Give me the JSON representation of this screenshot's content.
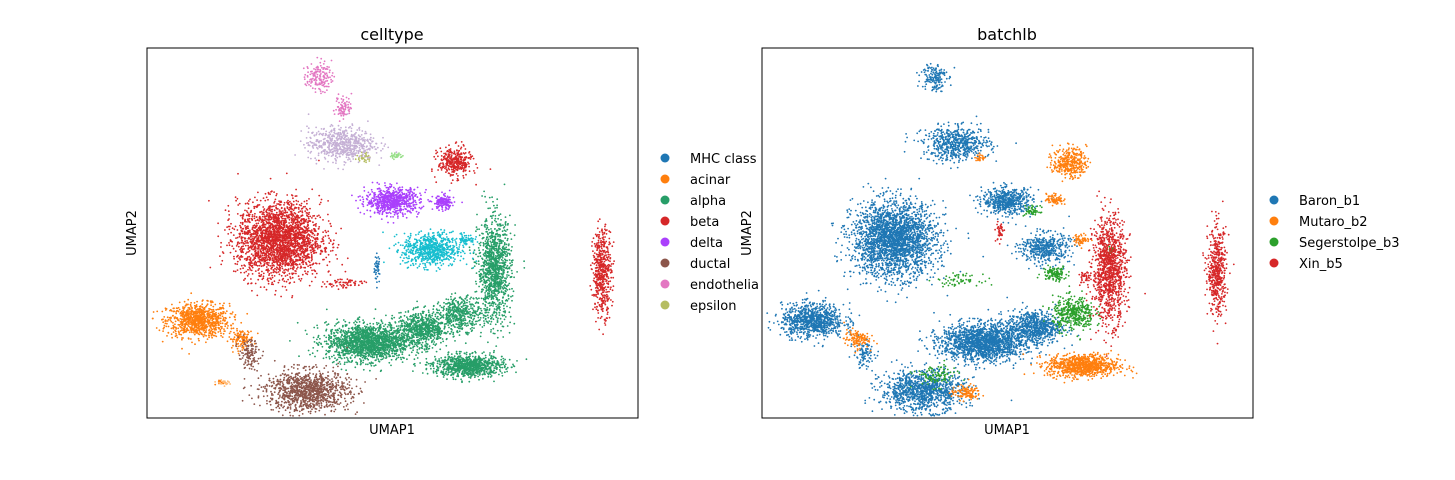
{
  "chart_data": [
    {
      "type": "scatter",
      "title": "celltype",
      "xlabel": "UMAP1",
      "ylabel": "UMAP2",
      "xlim": [
        -8,
        18
      ],
      "ylim": [
        -8,
        14
      ],
      "legend_position": "right",
      "series": [
        {
          "name": "MHC class",
          "color": "#1f77b4",
          "clusters": [
            [
              4.2,
              0.9,
              0.15,
              0.8,
              40
            ]
          ]
        },
        {
          "name": "acinar",
          "color": "#ff7f0e",
          "clusters": [
            [
              -5.3,
              -2.2,
              1.5,
              0.9,
              900
            ],
            [
              -3.0,
              -3.3,
              0.6,
              0.5,
              120
            ],
            [
              -4.0,
              -5.9,
              0.25,
              0.12,
              15
            ]
          ]
        },
        {
          "name": "alpha",
          "color": "#279e68",
          "clusters": [
            [
              3.7,
              -3.5,
              2.0,
              1.0,
              1700
            ],
            [
              6.6,
              -2.7,
              1.3,
              0.9,
              700
            ],
            [
              8.6,
              -1.8,
              1.0,
              0.9,
              400
            ],
            [
              10.4,
              0.8,
              0.8,
              2.8,
              1100
            ],
            [
              9.0,
              -4.9,
              1.7,
              0.6,
              900
            ]
          ]
        },
        {
          "name": "beta",
          "color": "#d62728",
          "clusters": [
            [
              -1.0,
              2.6,
              2.0,
              2.0,
              2500
            ],
            [
              8.3,
              7.2,
              0.8,
              0.8,
              350
            ],
            [
              16.1,
              0.7,
              0.45,
              2.3,
              500
            ],
            [
              2.4,
              0.0,
              1.0,
              0.3,
              60
            ]
          ]
        },
        {
          "name": "delta",
          "color": "#aa40fc",
          "clusters": [
            [
              5.0,
              4.9,
              1.3,
              0.7,
              700
            ],
            [
              7.7,
              4.8,
              0.5,
              0.4,
              150
            ]
          ]
        },
        {
          "name": "ductal",
          "color": "#8c564b",
          "clusters": [
            [
              0.5,
              -6.4,
              2.0,
              1.1,
              1100
            ],
            [
              -2.6,
              -4.2,
              0.5,
              0.8,
              120
            ]
          ]
        },
        {
          "name": "endothelia",
          "color": "#e377c2",
          "clusters": [
            [
              1.1,
              12.3,
              0.6,
              0.8,
              150
            ],
            [
              2.4,
              10.5,
              0.4,
              0.6,
              80
            ]
          ]
        },
        {
          "name": "epsilon",
          "color": "#b5bd61",
          "clusters": [
            [
              3.5,
              7.5,
              0.3,
              0.3,
              30
            ]
          ]
        },
        {
          "name": "",
          "color": "#17becf",
          "clusters": [
            [
              7.1,
              2.0,
              1.4,
              0.9,
              700
            ],
            [
              8.9,
              2.6,
              0.4,
              0.3,
              60
            ]
          ]
        },
        {
          "name": "",
          "color": "#c5b0d5",
          "clusters": [
            [
              2.3,
              8.3,
              1.6,
              0.9,
              600
            ]
          ]
        },
        {
          "name": "",
          "color": "#98df8a",
          "clusters": [
            [
              5.2,
              7.6,
              0.3,
              0.2,
              30
            ]
          ]
        },
        {
          "name": "",
          "color": "#ffbb78",
          "clusters": [
            [
              -4.0,
              -5.9,
              0.3,
              0.12,
              20
            ]
          ]
        }
      ]
    },
    {
      "type": "scatter",
      "title": "batchlb",
      "xlabel": "UMAP1",
      "ylabel": "UMAP2",
      "xlim": [
        -8,
        18
      ],
      "ylim": [
        -8,
        14
      ],
      "legend_position": "right",
      "series": [
        {
          "name": "Baron_b1",
          "color": "#1f77b4",
          "clusters": [
            [
              -1.0,
              2.6,
              2.0,
              2.0,
              2500
            ],
            [
              3.7,
              -3.5,
              2.0,
              1.0,
              1700
            ],
            [
              6.4,
              -2.6,
              1.3,
              0.9,
              700
            ],
            [
              -5.3,
              -2.2,
              1.5,
              0.9,
              900
            ],
            [
              0.5,
              -6.4,
              2.0,
              1.1,
              1100
            ],
            [
              5.0,
              4.9,
              1.2,
              0.7,
              550
            ],
            [
              2.3,
              8.3,
              1.6,
              0.9,
              600
            ],
            [
              1.1,
              12.3,
              0.6,
              0.8,
              150
            ],
            [
              7.0,
              2.1,
              1.2,
              0.8,
              450
            ],
            [
              -2.6,
              -4.2,
              0.5,
              0.8,
              100
            ]
          ]
        },
        {
          "name": "Mutaro_b2",
          "color": "#ff7f0e",
          "clusters": [
            [
              8.3,
              7.2,
              0.8,
              0.8,
              350
            ],
            [
              9.0,
              -4.9,
              1.7,
              0.6,
              900
            ],
            [
              -3.0,
              -3.3,
              0.6,
              0.5,
              120
            ],
            [
              2.8,
              -6.5,
              0.7,
              0.4,
              120
            ],
            [
              7.5,
              5.0,
              0.4,
              0.3,
              80
            ],
            [
              8.9,
              2.6,
              0.4,
              0.3,
              60
            ],
            [
              3.6,
              7.5,
              0.3,
              0.2,
              25
            ]
          ]
        },
        {
          "name": "Segerstolpe_b3",
          "color": "#2ca02c",
          "clusters": [
            [
              8.5,
              -1.8,
              1.0,
              0.9,
              400
            ],
            [
              7.5,
              0.6,
              0.6,
              0.4,
              120
            ],
            [
              2.4,
              0.2,
              1.0,
              0.3,
              60
            ],
            [
              6.3,
              4.3,
              0.4,
              0.3,
              50
            ],
            [
              1.2,
              -5.5,
              1.0,
              0.6,
              100
            ],
            [
              10.5,
              2.0,
              0.3,
              0.2,
              20
            ]
          ]
        },
        {
          "name": "Xin_b5",
          "color": "#d62728",
          "clusters": [
            [
              10.4,
              0.8,
              0.8,
              2.8,
              1100
            ],
            [
              16.1,
              0.7,
              0.45,
              2.3,
              500
            ],
            [
              4.6,
              3.1,
              0.2,
              0.6,
              40
            ],
            [
              9.1,
              0.3,
              0.3,
              0.4,
              40
            ]
          ]
        }
      ]
    }
  ]
}
